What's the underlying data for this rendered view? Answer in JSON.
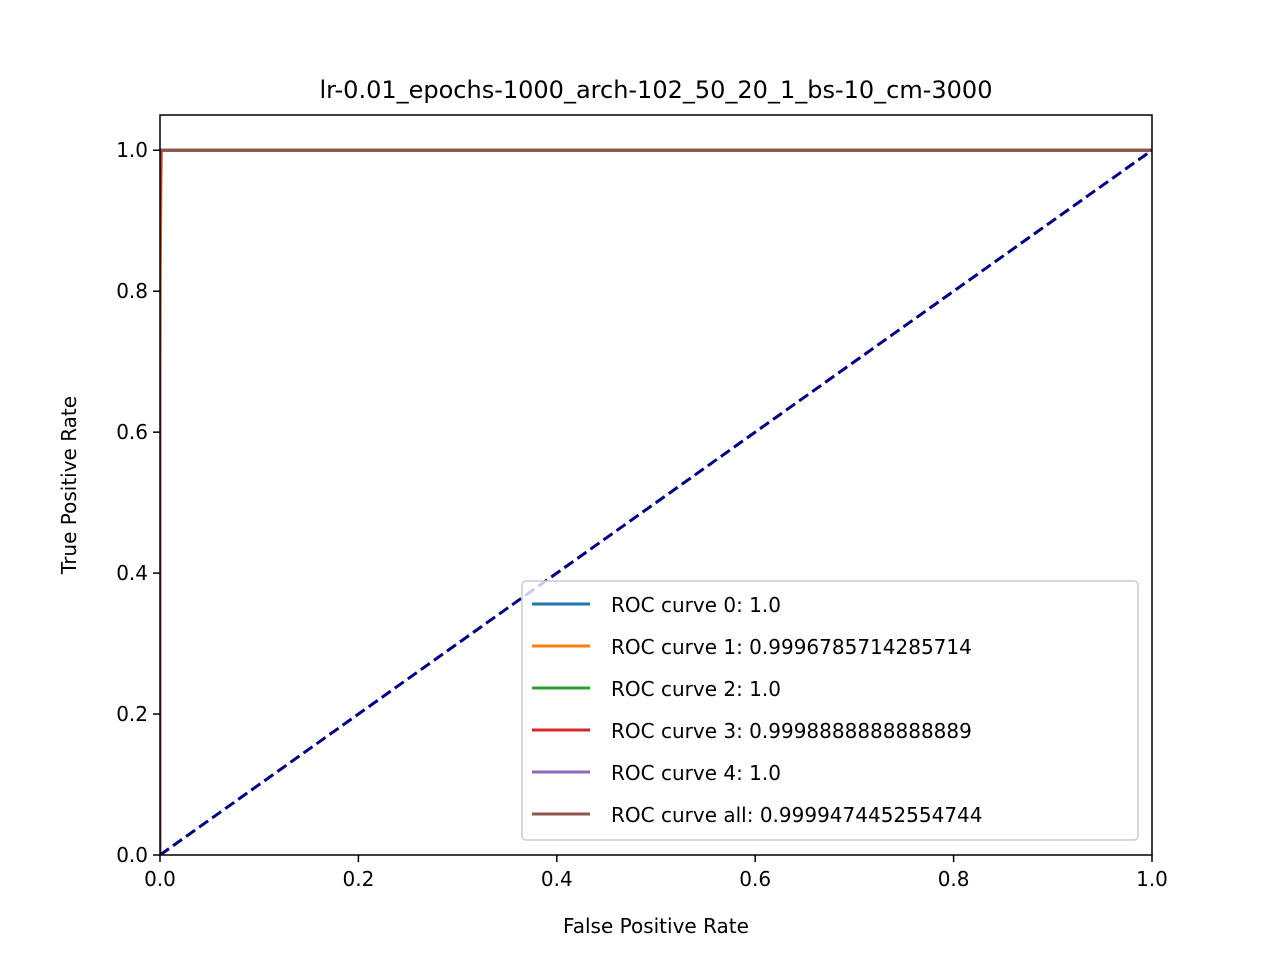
{
  "chart_data": {
    "type": "line",
    "title": "lr-0.01_epochs-1000_arch-102_50_20_1_bs-10_cm-3000",
    "xlabel": "False Positive Rate",
    "ylabel": "True Positive Rate",
    "xlim": [
      0.0,
      1.0
    ],
    "ylim": [
      0.0,
      1.05
    ],
    "x_ticks": [
      "0.0",
      "0.2",
      "0.4",
      "0.6",
      "0.8",
      "1.0"
    ],
    "y_ticks": [
      "0.0",
      "0.2",
      "0.4",
      "0.6",
      "0.8",
      "1.0"
    ],
    "grid": false,
    "legend_position": "lower-right",
    "series": [
      {
        "name": "ROC curve 0: 1.0",
        "color": "#1f77b4",
        "x": [
          0.0,
          0.0,
          1.0
        ],
        "y": [
          0.0,
          1.0,
          1.0
        ]
      },
      {
        "name": "ROC curve 1: 0.9996785714285714",
        "color": "#ff7f0e",
        "x": [
          0.0,
          0.0,
          0.0003,
          0.0013,
          1.0
        ],
        "y": [
          0.0,
          0.68,
          0.84,
          1.0,
          1.0
        ]
      },
      {
        "name": "ROC curve 2: 1.0",
        "color": "#2ca02c",
        "x": [
          0.0,
          0.0,
          1.0
        ],
        "y": [
          0.0,
          1.0,
          1.0
        ]
      },
      {
        "name": "ROC curve 3: 0.9998888888888889",
        "color": "#d62728",
        "x": [
          0.0,
          0.0,
          0.0004,
          0.0011,
          1.0
        ],
        "y": [
          0.0,
          0.88,
          0.95,
          1.0,
          1.0
        ]
      },
      {
        "name": "ROC curve 4: 1.0",
        "color": "#9467bd",
        "x": [
          0.0,
          0.0,
          1.0
        ],
        "y": [
          0.0,
          1.0,
          1.0
        ]
      },
      {
        "name": "ROC curve all: 0.9999474452554744",
        "color": "#8c564b",
        "x": [
          0.0,
          0.0,
          0.0006,
          1.0
        ],
        "y": [
          0.0,
          0.97,
          1.0,
          1.0
        ]
      }
    ],
    "reference_line": {
      "color": "#000080",
      "style": "dashed",
      "x": [
        0.0,
        1.0
      ],
      "y": [
        0.0,
        1.0
      ]
    }
  }
}
